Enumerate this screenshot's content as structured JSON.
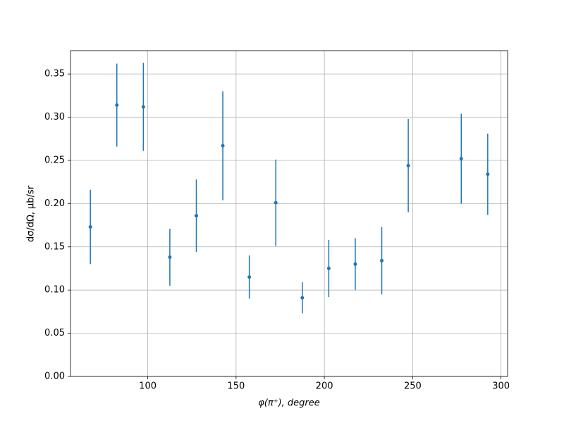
{
  "chart_data": {
    "type": "errorbar",
    "x_label": "φ(π⁺), degree",
    "y_label": "dσ/dΩ, μb/sr",
    "x": [
      67.5,
      82.5,
      97.5,
      112.5,
      127.5,
      142.5,
      157.5,
      172.5,
      187.5,
      202.5,
      217.5,
      232.5,
      247.5,
      277.5,
      292.5
    ],
    "values": [
      0.173,
      0.314,
      0.312,
      0.138,
      0.186,
      0.267,
      0.115,
      0.201,
      0.091,
      0.125,
      0.13,
      0.134,
      0.244,
      0.252,
      0.234
    ],
    "errors": [
      0.043,
      0.048,
      0.051,
      0.033,
      0.042,
      0.063,
      0.025,
      0.05,
      0.018,
      0.033,
      0.03,
      0.039,
      0.054,
      0.052,
      0.047
    ],
    "color": "#1f77b4",
    "xlim": [
      56.25,
      303.75
    ],
    "ylim": [
      0,
      0.377
    ],
    "xticks": [
      100,
      150,
      200,
      250,
      300
    ],
    "yticks": [
      {
        "value": 0,
        "label": "0.00"
      },
      {
        "value": 0.05,
        "label": "0.05"
      },
      {
        "value": 0.1,
        "label": "0.10"
      },
      {
        "value": 0.15,
        "label": "0.15"
      },
      {
        "value": 0.2,
        "label": "0.20"
      },
      {
        "value": 0.25,
        "label": "0.25"
      },
      {
        "value": 0.3,
        "label": "0.30"
      },
      {
        "value": 0.35,
        "label": "0.35"
      }
    ],
    "grid": true
  }
}
